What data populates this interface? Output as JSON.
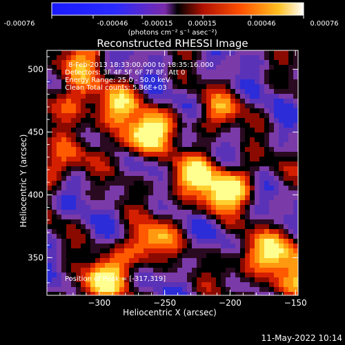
{
  "chart_data": {
    "type": "heatmap",
    "title": "Reconstructed RHESSI Image",
    "xlabel": "Heliocentric X (arcsec)",
    "ylabel": "Heliocentric Y (arcsec)",
    "xlim": [
      -340,
      -148
    ],
    "ylim": [
      320,
      515
    ],
    "x_ticks": [
      -300,
      -250,
      -200,
      -150
    ],
    "y_ticks": [
      350,
      400,
      450,
      500
    ],
    "colorbar": {
      "ticks": [
        "-0.00076",
        "-0.00046",
        "-0.00015",
        "0.00015",
        "0.00046",
        "0.00076"
      ],
      "range": [
        -0.00076,
        0.00076
      ],
      "units_line": "(photons cm⁻² s⁻¹ asec⁻²)"
    },
    "annotations": [
      "8-Feb-2013 18:33:00.000 to 18:35:16.000",
      "Detectors: 3F 4F 5F 6F 7F 8F, Att 0",
      "Energy Range: 25.0 - 50.0 keV",
      "Clean     Total counts: 5.36E+03"
    ],
    "peak_label": "Position of Peak = [-317,319]",
    "peak": [
      -317,
      319
    ],
    "bright_regions": [
      {
        "x": -265,
        "y": 448,
        "level": 1.0
      },
      {
        "x": -290,
        "y": 468,
        "level": 0.7
      },
      {
        "x": -202,
        "y": 404,
        "level": 0.95
      },
      {
        "x": -230,
        "y": 415,
        "level": 0.75
      },
      {
        "x": -265,
        "y": 360,
        "level": 0.75
      },
      {
        "x": -300,
        "y": 330,
        "level": 0.85
      },
      {
        "x": -320,
        "y": 478,
        "level": 0.55
      },
      {
        "x": -335,
        "y": 422,
        "level": 0.55
      },
      {
        "x": -160,
        "y": 355,
        "level": 0.55
      },
      {
        "x": -155,
        "y": 330,
        "level": 0.55
      },
      {
        "x": -210,
        "y": 465,
        "level": 0.45
      },
      {
        "x": -320,
        "y": 505,
        "level": 0.5
      },
      {
        "x": -185,
        "y": 350,
        "level": 0.5
      }
    ]
  },
  "footer": {
    "timestamp": "11-May-2022 10:14"
  }
}
